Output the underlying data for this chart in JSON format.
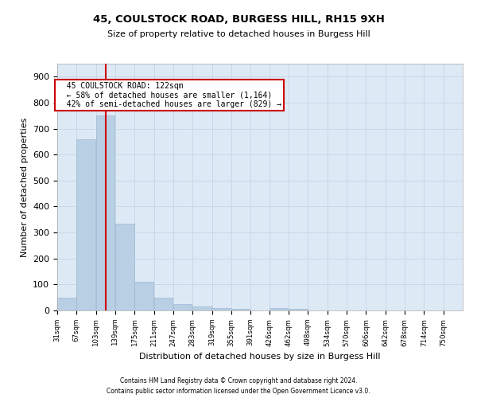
{
  "title_line1": "45, COULSTOCK ROAD, BURGESS HILL, RH15 9XH",
  "title_line2": "Size of property relative to detached houses in Burgess Hill",
  "xlabel": "Distribution of detached houses by size in Burgess Hill",
  "ylabel": "Number of detached properties",
  "footnote1": "Contains HM Land Registry data © Crown copyright and database right 2024.",
  "footnote2": "Contains public sector information licensed under the Open Government Licence v3.0.",
  "bar_color": "#b8cfe4",
  "bar_edge_color": "#a0b8d0",
  "grid_color": "#c8d8e8",
  "background_color": "#ddeaf6",
  "vline_color": "#cc0000",
  "vline_x": 122,
  "annotation_text": "  45 COULSTOCK ROAD: 122sqm\n  ← 58% of detached houses are smaller (1,164)\n  42% of semi-detached houses are larger (829) →",
  "annotation_box_color": "#ffffff",
  "annotation_edge_color": "#cc0000",
  "bin_edges": [
    31,
    67,
    103,
    139,
    175,
    211,
    247,
    283,
    319,
    355,
    391,
    426,
    462,
    498,
    534,
    570,
    606,
    642,
    678,
    714,
    750
  ],
  "bar_heights": [
    50,
    660,
    750,
    335,
    110,
    50,
    25,
    15,
    10,
    5,
    0,
    10,
    5,
    0,
    0,
    0,
    0,
    0,
    0,
    0
  ],
  "ylim": [
    0,
    950
  ],
  "yticks": [
    0,
    100,
    200,
    300,
    400,
    500,
    600,
    700,
    800,
    900
  ]
}
